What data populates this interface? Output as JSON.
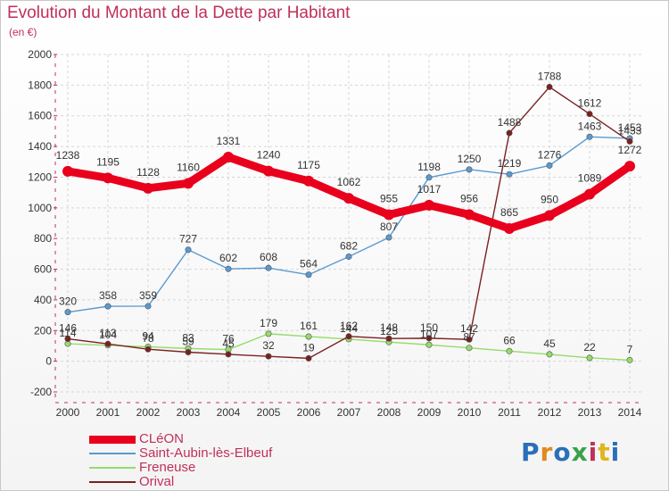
{
  "header": {
    "title": "Evolution du Montant de la Dette par Habitant",
    "subtitle": "(en €)"
  },
  "logo": {
    "text": "Proxiti",
    "letter_colors": [
      "#2a6fb8",
      "#e08a1e",
      "#2a6fb8",
      "#3aa14a",
      "#c0305a",
      "#e0b51e",
      "#2a6fb8"
    ]
  },
  "chart_data": {
    "type": "line",
    "title": "Evolution du Montant de la Dette par Habitant",
    "subtitle": "(en €)",
    "xlabel": "",
    "ylabel": "",
    "x": [
      "2000",
      "2001",
      "2002",
      "2003",
      "2004",
      "2005",
      "2006",
      "2007",
      "2008",
      "2009",
      "2010",
      "2011",
      "2012",
      "2013",
      "2014"
    ],
    "ylim": [
      -200,
      2000
    ],
    "yticks": [
      "-200",
      "0",
      "200",
      "400",
      "600",
      "800",
      "1000",
      "1200",
      "1400",
      "1600",
      "1800",
      "2000"
    ],
    "grid": true,
    "legend": "bottom-left",
    "series": [
      {
        "name": "CLéON",
        "color": "#e8001c",
        "values": [
          1238,
          1195,
          1128,
          1160,
          1331,
          1240,
          1175,
          1062,
          955,
          1017,
          956,
          865,
          950,
          1089,
          1272
        ]
      },
      {
        "name": "Saint-Aubin-lès-Elbeuf",
        "color": "#5a9ad0",
        "values": [
          320,
          358,
          359,
          727,
          602,
          608,
          564,
          682,
          807,
          1198,
          1250,
          1219,
          1276,
          1463,
          1453
        ]
      },
      {
        "name": "Freneuse",
        "color": "#94dc6a",
        "values": [
          114,
          104,
          94,
          83,
          76,
          179,
          161,
          144,
          125,
          107,
          87,
          66,
          45,
          22,
          7
        ]
      },
      {
        "name": "Orival",
        "color": "#7b2020",
        "values": [
          146,
          113,
          78,
          59,
          45,
          32,
          19,
          162,
          148,
          150,
          142,
          1488,
          1788,
          1612,
          1433
        ]
      }
    ]
  }
}
